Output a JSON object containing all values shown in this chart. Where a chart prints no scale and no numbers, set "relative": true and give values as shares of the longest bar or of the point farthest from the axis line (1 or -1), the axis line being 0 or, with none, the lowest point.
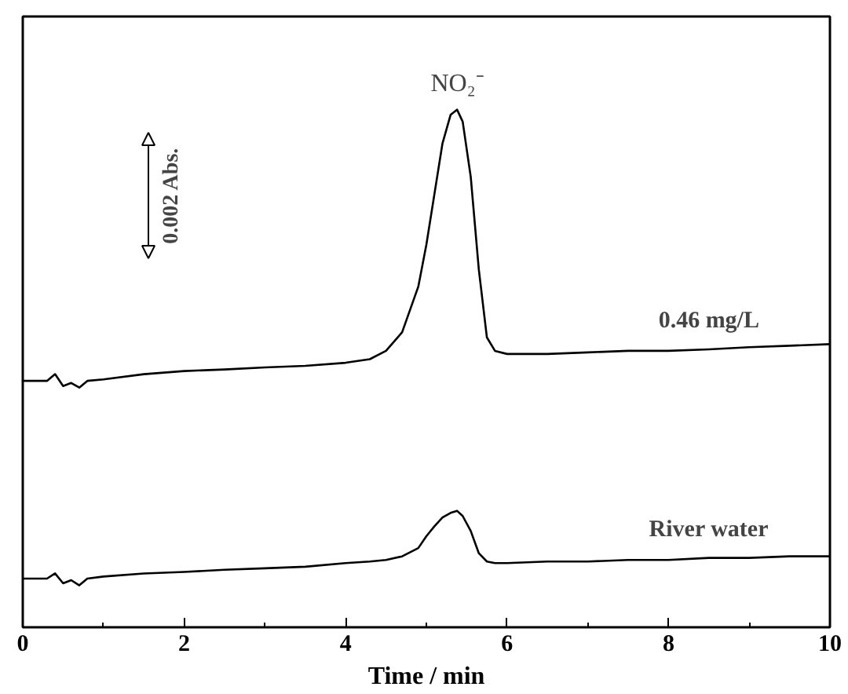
{
  "chart_data": {
    "type": "line",
    "relative": true,
    "xlabel": "Time / min",
    "xlim": [
      0,
      10
    ],
    "xticks": [
      0,
      2,
      4,
      6,
      8,
      10
    ],
    "grid": false,
    "x": [
      0,
      0.3,
      0.4,
      0.5,
      0.6,
      0.7,
      0.8,
      1,
      1.5,
      2,
      2.5,
      3,
      3.5,
      4,
      4.3,
      4.5,
      4.7,
      4.9,
      5.0,
      5.1,
      5.2,
      5.3,
      5.38,
      5.45,
      5.55,
      5.65,
      5.75,
      5.85,
      6,
      6.5,
      7,
      7.5,
      8,
      8.5,
      9,
      9.5,
      10
    ],
    "series": [
      {
        "name": "0.46 mg/L",
        "color": "#000000",
        "values": [
          0.476,
          0.476,
          0.489,
          0.466,
          0.472,
          0.463,
          0.476,
          0.479,
          0.489,
          0.495,
          0.498,
          0.502,
          0.505,
          0.511,
          0.518,
          0.534,
          0.57,
          0.658,
          0.739,
          0.837,
          0.935,
          0.99,
          1.0,
          0.977,
          0.87,
          0.691,
          0.56,
          0.534,
          0.528,
          0.528,
          0.531,
          0.534,
          0.534,
          0.537,
          0.541,
          0.544,
          0.547
        ]
      },
      {
        "name": "River water",
        "color": "#000000",
        "values": [
          0.094,
          0.094,
          0.104,
          0.085,
          0.091,
          0.081,
          0.094,
          0.098,
          0.104,
          0.107,
          0.111,
          0.114,
          0.117,
          0.124,
          0.127,
          0.13,
          0.137,
          0.153,
          0.176,
          0.195,
          0.212,
          0.221,
          0.225,
          0.215,
          0.186,
          0.143,
          0.127,
          0.124,
          0.124,
          0.127,
          0.127,
          0.13,
          0.13,
          0.134,
          0.134,
          0.137,
          0.137
        ]
      }
    ],
    "annotations": [
      {
        "text": "NO₂⁻",
        "x": 5.38,
        "y": 1.0
      },
      "0.002 Abs."
    ]
  }
}
